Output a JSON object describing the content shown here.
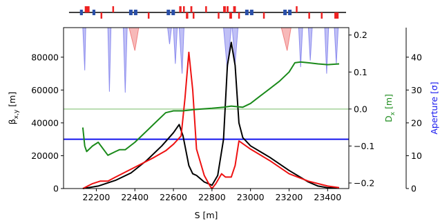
{
  "chart_data": {
    "type": "line",
    "xlabel": "S [m]",
    "xlim": [
      22030,
      23510
    ],
    "x_ticks": [
      22200,
      22400,
      22600,
      22800,
      23000,
      23200,
      23400
    ],
    "axes": {
      "beta": {
        "label": "β_{x,y} [m]",
        "label_main": "β",
        "label_sub": "x,y",
        "label_unit": " [m]",
        "ylim": [
          0,
          98000
        ],
        "ticks": [
          0,
          20000,
          40000,
          60000,
          80000
        ]
      },
      "dispersion": {
        "label": "D_x [m]",
        "label_main": "D",
        "label_sub": "x",
        "label_unit": " [m]",
        "color": "#1a8a1a",
        "ylim": [
          -0.215,
          0.22
        ],
        "ticks": [
          -0.2,
          -0.1,
          0.0,
          0.1,
          0.2
        ],
        "tick_labels": [
          "−0.2",
          "−0.1",
          "0.0",
          "0.1",
          "0.2"
        ]
      },
      "aperture": {
        "label": "Aperture [σ]",
        "color": "#1515ee",
        "ylim": [
          0,
          49
        ],
        "ticks": [
          0,
          10,
          20,
          30,
          40
        ]
      }
    },
    "series": [
      {
        "axis": "beta",
        "color": "#000000",
        "x": [
          22130,
          22210,
          22300,
          22380,
          22460,
          22540,
          22600,
          22630,
          22650,
          22680,
          22700,
          22720,
          22760,
          22800,
          22830,
          22860,
          22880,
          22900,
          22920,
          22940,
          22960,
          23000,
          23100,
          23200,
          23300,
          23350,
          23400,
          23450
        ],
        "y": [
          0,
          1500,
          5000,
          9500,
          17000,
          26000,
          34000,
          39000,
          32000,
          14000,
          9000,
          8000,
          4000,
          2000,
          8000,
          30000,
          75000,
          89000,
          75000,
          40000,
          31000,
          26000,
          19000,
          11000,
          4000,
          1500,
          500,
          300
        ]
      },
      {
        "axis": "beta",
        "color": "#ee1111",
        "x": [
          22130,
          22180,
          22220,
          22260,
          22300,
          22400,
          22500,
          22560,
          22600,
          22640,
          22660,
          22680,
          22700,
          22720,
          22760,
          22790,
          22800,
          22820,
          22850,
          22870,
          22900,
          22920,
          22940,
          23000,
          23100,
          23200,
          23300,
          23400,
          23460
        ],
        "y": [
          0,
          3000,
          4500,
          4500,
          7000,
          13000,
          19000,
          23000,
          27000,
          32000,
          55000,
          83000,
          60000,
          24000,
          8000,
          1500,
          0,
          3000,
          9000,
          7000,
          7000,
          14000,
          29000,
          24000,
          17000,
          9000,
          4500,
          1500,
          500
        ]
      },
      {
        "axis": "dispersion",
        "color": "#1a8a1a",
        "x": [
          22130,
          22140,
          22150,
          22180,
          22210,
          22260,
          22300,
          22320,
          22350,
          22400,
          22460,
          22520,
          22560,
          22600,
          22650,
          22700,
          22750,
          22800,
          22860,
          22900,
          22960,
          23000,
          23050,
          23100,
          23150,
          23200,
          23230,
          23260,
          23300,
          23350,
          23400,
          23460
        ],
        "y": [
          -0.05,
          -0.1,
          -0.115,
          -0.1,
          -0.09,
          -0.125,
          -0.115,
          -0.11,
          -0.11,
          -0.09,
          -0.06,
          -0.03,
          -0.01,
          -0.005,
          -0.005,
          -0.002,
          0.0,
          0.002,
          0.005,
          0.008,
          0.005,
          0.015,
          0.035,
          0.055,
          0.075,
          0.1,
          0.125,
          0.127,
          0.125,
          0.122,
          0.12,
          0.122
        ]
      }
    ],
    "hlines": [
      {
        "axis": "aperture",
        "y": 15,
        "color": "#1515ee"
      },
      {
        "axis": "dispersion",
        "y": 0.0,
        "color": "#b8dcb0"
      }
    ],
    "aperture_fills": [
      {
        "color": "#8c8cee",
        "x": [
          22130,
          22140,
          22145
        ],
        "y": [
          49,
          36,
          49
        ]
      },
      {
        "color": "#8c8cee",
        "x": [
          22260,
          22268,
          22276
        ],
        "y": [
          49,
          29.5,
          49
        ]
      },
      {
        "color": "#8c8cee",
        "x": [
          22340,
          22350,
          22360
        ],
        "y": [
          49,
          29.2,
          49
        ]
      },
      {
        "color": "#f08080",
        "x": [
          22370,
          22400,
          22420
        ],
        "y": [
          49,
          42,
          49
        ]
      },
      {
        "color": "#8c8cee",
        "x": [
          22570,
          22580,
          22590
        ],
        "y": [
          49,
          44,
          49
        ]
      },
      {
        "color": "#8c8cee",
        "x": [
          22600,
          22610,
          22620
        ],
        "y": [
          49,
          38,
          49
        ]
      },
      {
        "color": "#8c8cee",
        "x": [
          22630,
          22645,
          22655
        ],
        "y": [
          49,
          35,
          49
        ]
      },
      {
        "color": "#8c8cee",
        "x": [
          22860,
          22880,
          22900
        ],
        "y": [
          49,
          36,
          49
        ]
      },
      {
        "color": "#8c8cee",
        "x": [
          22905,
          22920,
          22935
        ],
        "y": [
          49,
          38,
          49
        ]
      },
      {
        "color": "#f08080",
        "x": [
          23160,
          23190,
          23210
        ],
        "y": [
          49,
          42,
          49
        ]
      },
      {
        "color": "#8c8cee",
        "x": [
          23250,
          23260,
          23270
        ],
        "y": [
          49,
          37,
          49
        ]
      },
      {
        "color": "#8c8cee",
        "x": [
          23300,
          23310,
          23320
        ],
        "y": [
          49,
          39,
          49
        ]
      },
      {
        "color": "#8c8cee",
        "x": [
          23385,
          23395,
          23405
        ],
        "y": [
          49,
          35,
          49
        ]
      },
      {
        "color": "#8c8cee",
        "x": [
          23435,
          23445,
          23455
        ],
        "y": [
          49,
          38,
          49
        ]
      }
    ],
    "lattice": {
      "elements": [
        {
          "type": "bend",
          "s": 22115,
          "len": 15
        },
        {
          "type": "quad-up",
          "s": 22140,
          "len": 25
        },
        {
          "type": "bend",
          "s": 22180,
          "len": 15
        },
        {
          "type": "quad-down",
          "s": 22222,
          "len": 8
        },
        {
          "type": "quad-up",
          "s": 22283,
          "len": 8
        },
        {
          "type": "bend",
          "s": 22370,
          "len": 18
        },
        {
          "type": "bend",
          "s": 22395,
          "len": 18
        },
        {
          "type": "quad-down",
          "s": 22467,
          "len": 8
        },
        {
          "type": "bend",
          "s": 22565,
          "len": 18
        },
        {
          "type": "bend",
          "s": 22590,
          "len": 18
        },
        {
          "type": "quad-up",
          "s": 22630,
          "len": 12
        },
        {
          "type": "quad-up",
          "s": 22650,
          "len": 8
        },
        {
          "type": "quad-down",
          "s": 22665,
          "len": 12
        },
        {
          "type": "quad-up",
          "s": 22688,
          "len": 10
        },
        {
          "type": "quad-down",
          "s": 22700,
          "len": 8
        },
        {
          "type": "quad-up",
          "s": 22765,
          "len": 8
        },
        {
          "type": "quad-down",
          "s": 22830,
          "len": 8
        },
        {
          "type": "quad-up",
          "s": 22858,
          "len": 14
        },
        {
          "type": "quad-up",
          "s": 22876,
          "len": 10
        },
        {
          "type": "quad-down",
          "s": 22890,
          "len": 14
        },
        {
          "type": "quad-up",
          "s": 22910,
          "len": 14
        },
        {
          "type": "quad-down",
          "s": 22936,
          "len": 8
        },
        {
          "type": "bend",
          "s": 22972,
          "len": 18
        },
        {
          "type": "bend",
          "s": 22997,
          "len": 18
        },
        {
          "type": "quad-down",
          "s": 23065,
          "len": 8
        },
        {
          "type": "bend",
          "s": 23170,
          "len": 18
        },
        {
          "type": "bend",
          "s": 23195,
          "len": 18
        },
        {
          "type": "quad-up",
          "s": 23235,
          "len": 8
        },
        {
          "type": "quad-down",
          "s": 23300,
          "len": 8
        },
        {
          "type": "quad-down",
          "s": 23365,
          "len": 8
        },
        {
          "type": "quad-down",
          "s": 23435,
          "len": 22
        }
      ],
      "colors": {
        "bend": "#2a4fa8",
        "quad": "#ee2222",
        "line": "#000000"
      }
    }
  }
}
